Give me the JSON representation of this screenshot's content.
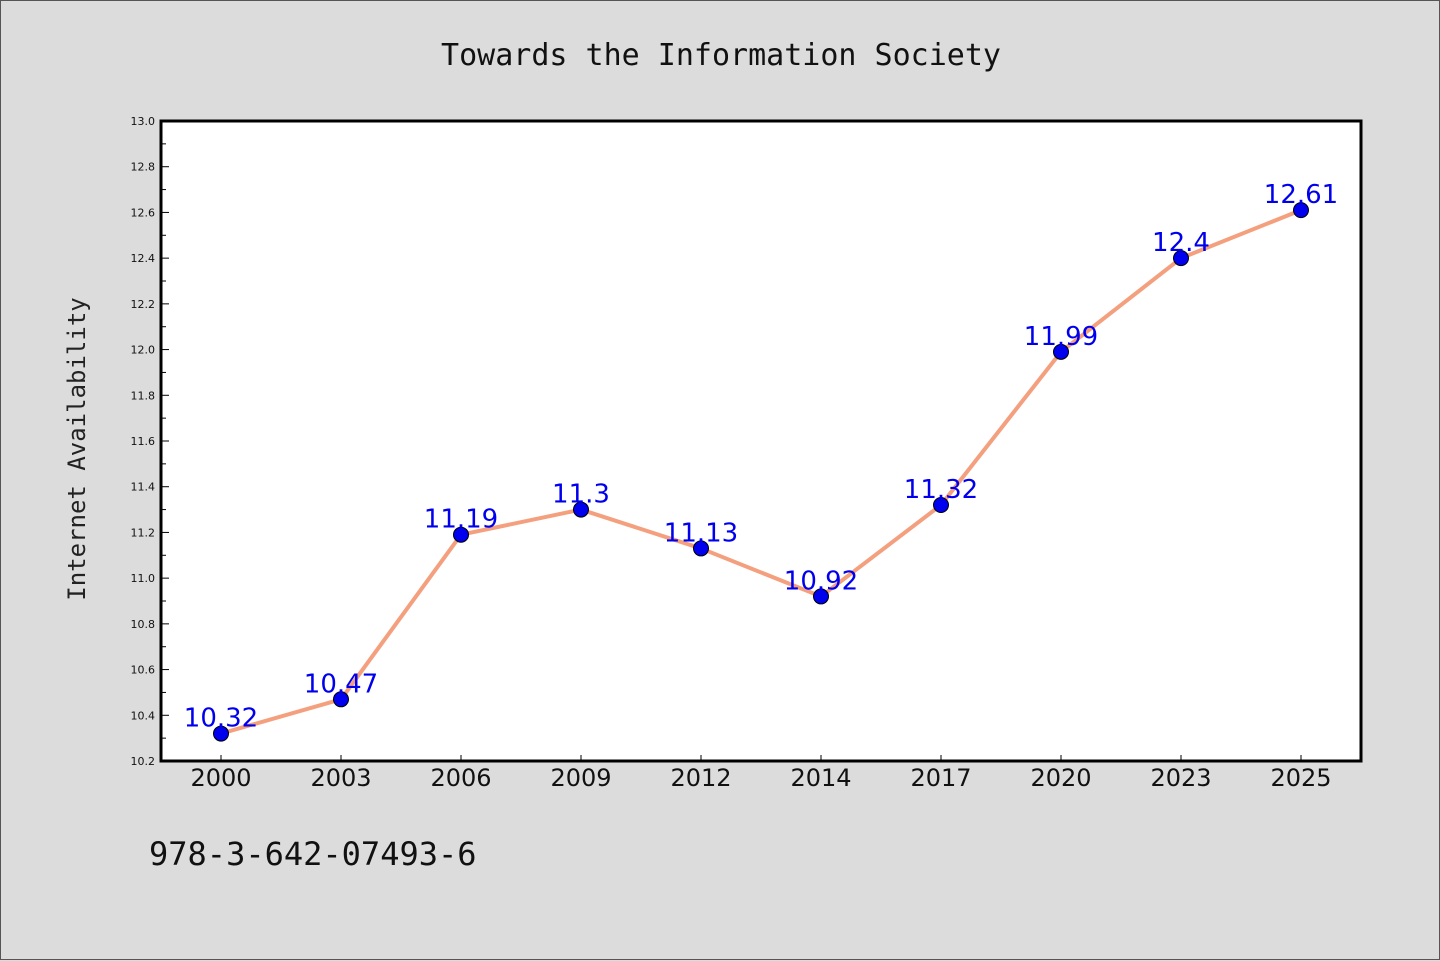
{
  "chart_data": {
    "type": "line",
    "title": "Towards the Information Society",
    "xlabel": "",
    "ylabel": "Internet Availability",
    "categories": [
      "2000",
      "2003",
      "2006",
      "2009",
      "2012",
      "2014",
      "2017",
      "2020",
      "2023",
      "2025"
    ],
    "series": [
      {
        "values": [
          10.32,
          10.47,
          11.19,
          11.3,
          11.13,
          10.92,
          11.32,
          11.99,
          12.4,
          12.61
        ],
        "data_labels": [
          "10.32",
          "10.47",
          "11.19",
          "11.3",
          "11.13",
          "10.92",
          "11.32",
          "11.99",
          "12.4",
          "12.61"
        ],
        "line_color": "#f4a07f",
        "marker_color": "#0000ee",
        "label_color": "#0000ee"
      }
    ],
    "ylim": [
      10.2,
      13.0
    ],
    "yticks": [
      "10.2",
      "10.4",
      "10.6",
      "10.8",
      "11.0",
      "11.2",
      "11.4",
      "11.6",
      "11.8",
      "12.0",
      "12.2",
      "12.4",
      "12.6",
      "12.8",
      "13.0"
    ],
    "grid": false,
    "legend": "none"
  },
  "footer": {
    "isbn": "978-3-642-07493-6"
  },
  "colors": {
    "page_background": "#dcdcdc",
    "plot_background": "#ffffff",
    "axis": "#000000"
  }
}
